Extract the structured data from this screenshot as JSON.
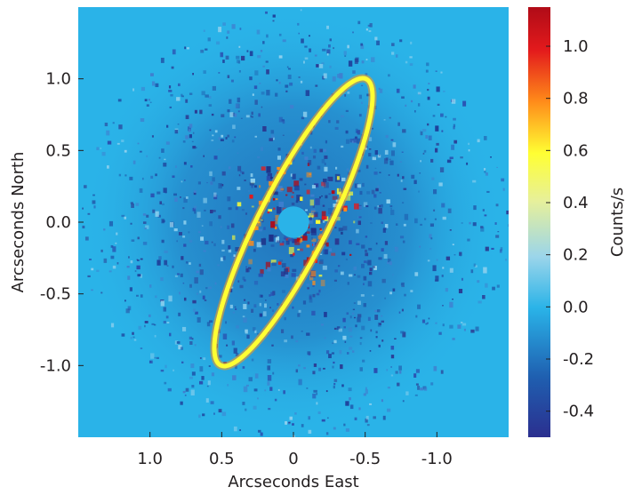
{
  "chart_data": {
    "type": "heatmap",
    "title": "",
    "xlabel": "Arcseconds East",
    "ylabel": "Arcseconds North",
    "x_ticks": [
      1.0,
      0.5,
      0,
      -0.5,
      -1.0
    ],
    "x_tick_labels": [
      "1.0",
      "0.5",
      "0",
      "-0.5",
      "-1.0"
    ],
    "y_ticks": [
      1.0,
      0.5,
      0.0,
      -0.5,
      -1.0
    ],
    "y_tick_labels": [
      "1.0",
      "0.5",
      "0.0",
      "-0.5",
      "-1.0"
    ],
    "xlim": [
      1.5,
      -1.5
    ],
    "ylim": [
      -1.5,
      1.5
    ],
    "x_reversed": true,
    "grid": false,
    "colorbar": {
      "label": "Counts/s",
      "range": [
        -0.5,
        1.15
      ],
      "ticks": [
        1.0,
        0.8,
        0.6,
        0.4,
        0.2,
        0.0,
        -0.2,
        -0.4
      ],
      "tick_labels": [
        "1.0",
        "0.8",
        "0.6",
        "0.4",
        "0.2",
        "0.0",
        "-0.2",
        "-0.4"
      ],
      "colormap": [
        "#2b2f8f",
        "#1f5fb0",
        "#2ab3e8",
        "#9bd5ea",
        "#ffff33",
        "#ff8c1a",
        "#e31a1c",
        "#b00b17"
      ]
    },
    "features": {
      "ring": {
        "center": [
          0.0,
          0.0
        ],
        "semi_major_arcsec": 1.12,
        "semi_minor_arcsec": 0.24,
        "position_angle_deg": 27,
        "level": 0.5
      },
      "occulted_core_radius_arcsec": 0.11,
      "outer_field_radius_arcsec": 1.5,
      "background_level": 0.0
    }
  }
}
